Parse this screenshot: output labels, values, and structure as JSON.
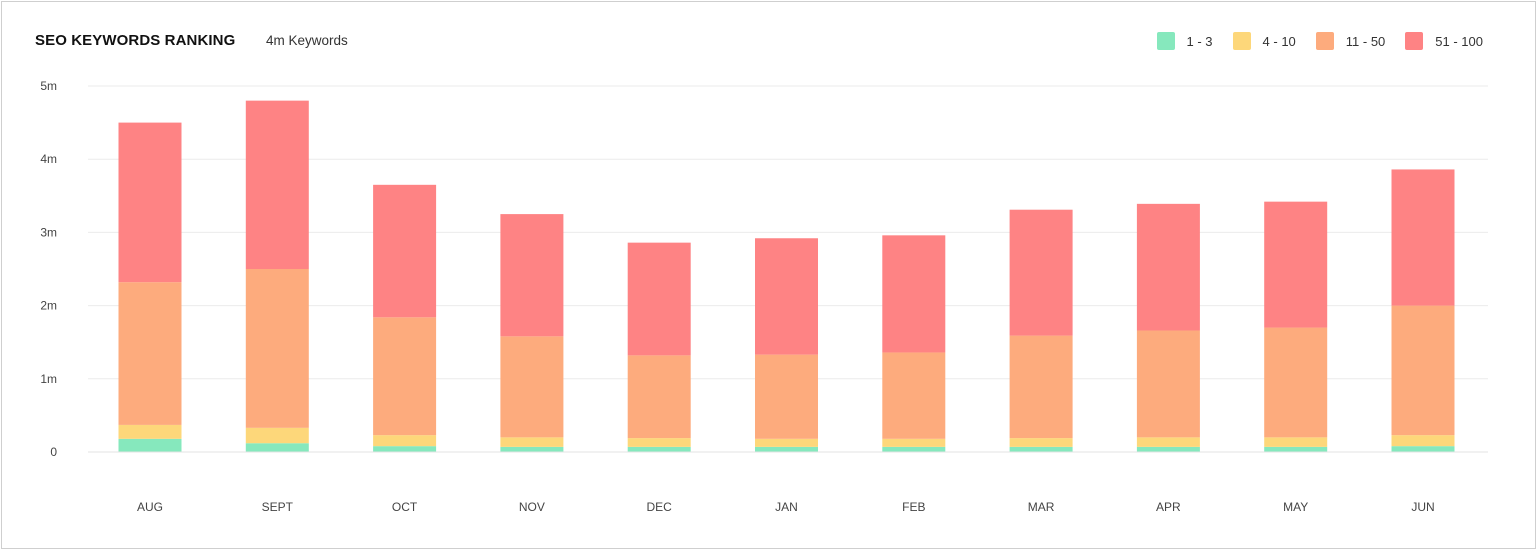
{
  "header": {
    "title": "SEO KEYWORDS RANKING",
    "subtitle": "4m Keywords"
  },
  "colors": {
    "1 - 3": "#86e8bd",
    "4 - 10": "#fdd77a",
    "11 - 50": "#fdab7d",
    "51 - 100": "#fe8384",
    "grid": "#ebebeb"
  },
  "chart_data": {
    "type": "bar",
    "stacked": true,
    "title": "SEO KEYWORDS RANKING",
    "subtitle": "4m Keywords",
    "xlabel": "",
    "ylabel": "",
    "ylim": [
      0,
      5
    ],
    "y_unit": "m",
    "y_ticks": [
      "0",
      "1m",
      "2m",
      "3m",
      "4m",
      "5m"
    ],
    "grid": true,
    "legend_position": "top-right",
    "categories": [
      "AUG",
      "SEPT",
      "OCT",
      "NOV",
      "DEC",
      "JAN",
      "FEB",
      "MAR",
      "APR",
      "MAY",
      "JUN"
    ],
    "series": [
      {
        "name": "1 - 3",
        "color": "#86e8bd",
        "values": [
          0.18,
          0.12,
          0.08,
          0.07,
          0.07,
          0.07,
          0.07,
          0.07,
          0.07,
          0.07,
          0.08
        ]
      },
      {
        "name": "4 - 10",
        "color": "#fdd77a",
        "values": [
          0.19,
          0.21,
          0.15,
          0.13,
          0.12,
          0.11,
          0.11,
          0.12,
          0.13,
          0.13,
          0.15
        ]
      },
      {
        "name": "11 - 50",
        "color": "#fdab7d",
        "values": [
          1.95,
          2.17,
          1.61,
          1.38,
          1.13,
          1.15,
          1.18,
          1.4,
          1.46,
          1.5,
          1.77
        ]
      },
      {
        "name": "51 - 100",
        "color": "#fe8384",
        "values": [
          2.18,
          2.3,
          1.81,
          1.67,
          1.54,
          1.59,
          1.6,
          1.72,
          1.73,
          1.72,
          1.86
        ]
      }
    ]
  }
}
